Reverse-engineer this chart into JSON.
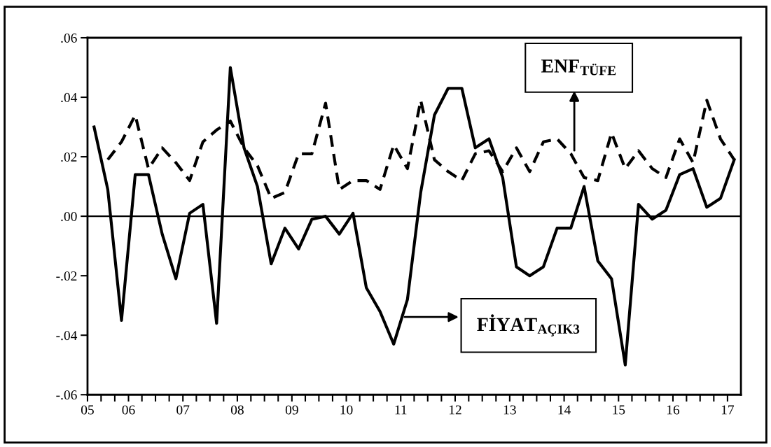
{
  "chart_data": {
    "type": "line",
    "x": [
      "2005-05-15",
      "2005-08-15",
      "2005-11-15",
      "2006-02-15",
      "2006-05-15",
      "2006-08-15",
      "2006-11-15",
      "2007-02-15",
      "2007-05-15",
      "2007-08-15",
      "2007-11-15",
      "2008-02-15",
      "2008-05-15",
      "2008-08-15",
      "2008-11-15",
      "2009-02-15",
      "2009-05-15",
      "2009-08-15",
      "2009-11-15",
      "2010-02-15",
      "2010-05-15",
      "2010-08-15",
      "2010-11-15",
      "2011-02-15",
      "2011-05-15",
      "2011-08-15",
      "2011-11-15",
      "2012-02-15",
      "2012-05-15",
      "2012-08-15",
      "2012-11-15",
      "2013-02-15",
      "2013-05-15",
      "2013-08-15",
      "2013-11-15",
      "2014-02-15",
      "2014-05-15",
      "2014-08-15",
      "2014-11-15",
      "2015-02-15",
      "2015-05-15",
      "2015-08-15",
      "2015-11-15",
      "2016-02-15",
      "2016-05-15",
      "2016-08-15",
      "2016-11-15",
      "2017-02-15"
    ],
    "series": [
      {
        "name": "FİYAT$_{AÇIK3}$",
        "color": "#000000",
        "line_style": "solid",
        "values": [
          0.03,
          0.009,
          -0.035,
          0.014,
          0.014,
          -0.006,
          -0.021,
          0.001,
          0.004,
          -0.036,
          0.05,
          0.023,
          0.01,
          -0.016,
          -0.004,
          -0.011,
          -0.001,
          0.0,
          -0.006,
          0.001,
          -0.024,
          -0.032,
          -0.043,
          -0.028,
          0.008,
          0.034,
          0.043,
          0.043,
          0.023,
          0.026,
          0.013,
          -0.017,
          -0.02,
          -0.017,
          -0.004,
          -0.004,
          0.01,
          -0.015,
          -0.021,
          -0.05,
          0.004,
          -0.001,
          0.002,
          0.014,
          0.016,
          0.003,
          0.006,
          0.019
        ]
      },
      {
        "name": "ENF$_{TÜFE}$",
        "color": "#000000",
        "line_style": "dashed",
        "values": [
          null,
          0.019,
          0.025,
          0.034,
          0.016,
          0.023,
          0.018,
          0.012,
          0.025,
          0.029,
          0.032,
          0.023,
          0.017,
          0.006,
          0.008,
          0.021,
          0.021,
          0.038,
          0.009,
          0.012,
          0.012,
          0.009,
          0.024,
          0.016,
          0.039,
          0.019,
          0.015,
          0.012,
          0.021,
          0.022,
          0.015,
          0.023,
          0.015,
          0.025,
          0.026,
          0.021,
          0.013,
          0.012,
          0.028,
          0.016,
          0.022,
          0.016,
          0.013,
          0.026,
          0.018,
          0.039,
          0.026,
          0.019
        ]
      }
    ],
    "xlim": [
      "2005-04-01",
      "2017-04-01"
    ],
    "xticks": [
      {
        "value": "2005-04-01",
        "label": "05"
      },
      {
        "value": "2005-07-01",
        "label": null
      },
      {
        "value": "2005-10-01",
        "label": null
      },
      {
        "value": "2006-01-01",
        "label": "06"
      },
      {
        "value": "2006-04-01",
        "label": null
      },
      {
        "value": "2006-07-01",
        "label": null
      },
      {
        "value": "2006-10-01",
        "label": null
      },
      {
        "value": "2007-01-01",
        "label": "07"
      },
      {
        "value": "2007-04-01",
        "label": null
      },
      {
        "value": "2007-07-01",
        "label": null
      },
      {
        "value": "2007-10-01",
        "label": null
      },
      {
        "value": "2008-01-01",
        "label": "08"
      },
      {
        "value": "2008-04-01",
        "label": null
      },
      {
        "value": "2008-07-01",
        "label": null
      },
      {
        "value": "2008-10-01",
        "label": null
      },
      {
        "value": "2009-01-01",
        "label": "09"
      },
      {
        "value": "2009-04-01",
        "label": null
      },
      {
        "value": "2009-07-01",
        "label": null
      },
      {
        "value": "2009-10-01",
        "label": null
      },
      {
        "value": "2010-01-01",
        "label": "10"
      },
      {
        "value": "2010-04-01",
        "label": null
      },
      {
        "value": "2010-07-01",
        "label": null
      },
      {
        "value": "2010-10-01",
        "label": null
      },
      {
        "value": "2011-01-01",
        "label": "11"
      },
      {
        "value": "2011-04-01",
        "label": null
      },
      {
        "value": "2011-07-01",
        "label": null
      },
      {
        "value": "2011-10-01",
        "label": null
      },
      {
        "value": "2012-01-01",
        "label": "12"
      },
      {
        "value": "2012-04-01",
        "label": null
      },
      {
        "value": "2012-07-01",
        "label": null
      },
      {
        "value": "2012-10-01",
        "label": null
      },
      {
        "value": "2013-01-01",
        "label": "13"
      },
      {
        "value": "2013-04-01",
        "label": null
      },
      {
        "value": "2013-07-01",
        "label": null
      },
      {
        "value": "2013-10-01",
        "label": null
      },
      {
        "value": "2014-01-01",
        "label": "14"
      },
      {
        "value": "2014-04-01",
        "label": null
      },
      {
        "value": "2014-07-01",
        "label": null
      },
      {
        "value": "2014-10-01",
        "label": null
      },
      {
        "value": "2015-01-01",
        "label": "15"
      },
      {
        "value": "2015-04-01",
        "label": null
      },
      {
        "value": "2015-07-01",
        "label": null
      },
      {
        "value": "2015-10-01",
        "label": null
      },
      {
        "value": "2016-01-01",
        "label": "16"
      },
      {
        "value": "2016-04-01",
        "label": null
      },
      {
        "value": "2016-07-01",
        "label": null
      },
      {
        "value": "2016-10-01",
        "label": null
      },
      {
        "value": "2017-01-01",
        "label": "17"
      }
    ],
    "ylim": [
      -0.06,
      0.06
    ],
    "yticks": [
      {
        "value": -0.06,
        "label": "-.06"
      },
      {
        "value": -0.04,
        "label": "-.04"
      },
      {
        "value": -0.02,
        "label": "-.02"
      },
      {
        "value": 0,
        "label": ".00"
      },
      {
        "value": 0.02,
        "label": ".02"
      },
      {
        "value": 0.04,
        "label": ".04"
      },
      {
        "value": 0.06,
        "label": ".06"
      }
    ],
    "ref_lines": [
      {
        "axis": "y",
        "value": 0,
        "color": "#000000",
        "line_style": "solid"
      }
    ],
    "grid": false,
    "marker": "none"
  }
}
